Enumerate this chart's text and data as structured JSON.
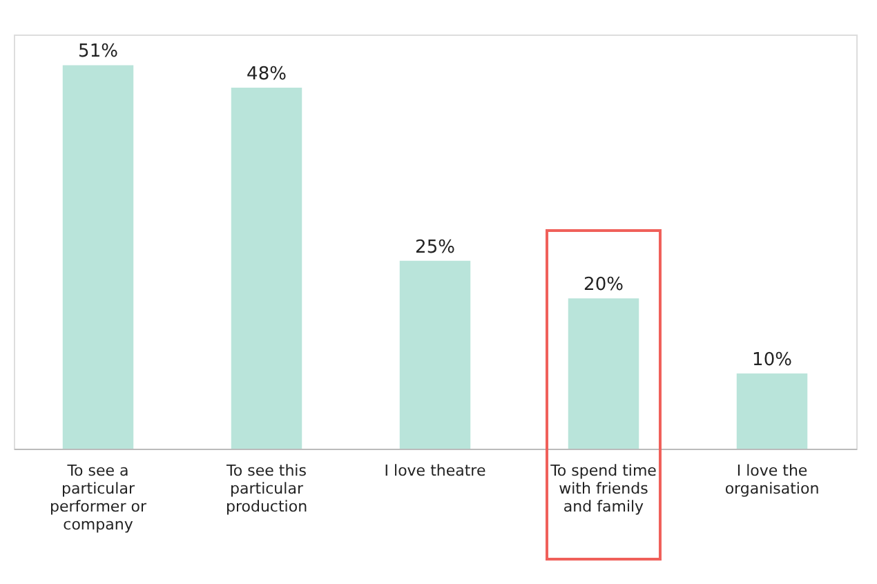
{
  "chart_data": {
    "type": "bar",
    "categories": [
      "To see a particular performer or company",
      "To see this particular production",
      "I love theatre",
      "To spend time with friends and family",
      "I love the organisation"
    ],
    "values": [
      51,
      48,
      25,
      20,
      10
    ],
    "value_labels": [
      "51%",
      "48%",
      "25%",
      "20%",
      "10%"
    ],
    "color": "#b9e4da"
  }
}
